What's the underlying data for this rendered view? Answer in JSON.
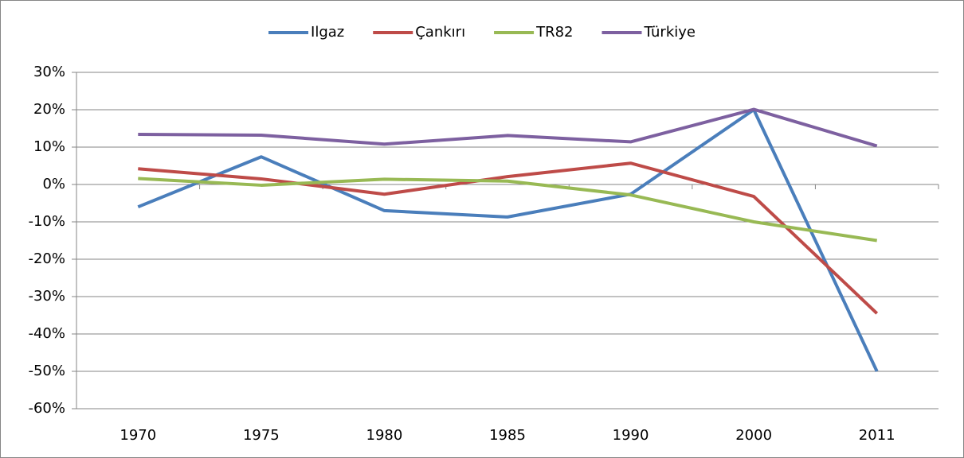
{
  "chart_data": {
    "type": "line",
    "categories": [
      "1970",
      "1975",
      "1980",
      "1985",
      "1990",
      "2000",
      "2011"
    ],
    "series": [
      {
        "name": "Ilgaz",
        "color": "#4a7ebb",
        "values": [
          -6,
          7.4,
          -7,
          -8.7,
          -2.6,
          20,
          -50
        ]
      },
      {
        "name": "Çankırı",
        "color": "#be4b48",
        "values": [
          4.2,
          1.5,
          -2.6,
          2.1,
          5.7,
          -3.2,
          -34.5
        ]
      },
      {
        "name": "TR82",
        "color": "#98b954",
        "values": [
          1.6,
          -0.2,
          1.4,
          0.9,
          -2.8,
          -10,
          -15
        ]
      },
      {
        "name": "Türkiye",
        "color": "#7d60a0",
        "values": [
          13.4,
          13.2,
          10.8,
          13.1,
          11.4,
          20.1,
          10.3
        ]
      }
    ],
    "ylim": [
      -60,
      30
    ],
    "yticks": [
      {
        "value": -60,
        "label": "-60%"
      },
      {
        "value": -50,
        "label": "-50%"
      },
      {
        "value": -40,
        "label": "-40%"
      },
      {
        "value": -30,
        "label": "-30%"
      },
      {
        "value": -20,
        "label": "-20%"
      },
      {
        "value": -10,
        "label": "-10%"
      },
      {
        "value": 0,
        "label": "0%"
      },
      {
        "value": 10,
        "label": "10%"
      },
      {
        "value": 20,
        "label": "20%"
      },
      {
        "value": 30,
        "label": "30%"
      }
    ],
    "grid": true,
    "legend": "top"
  }
}
